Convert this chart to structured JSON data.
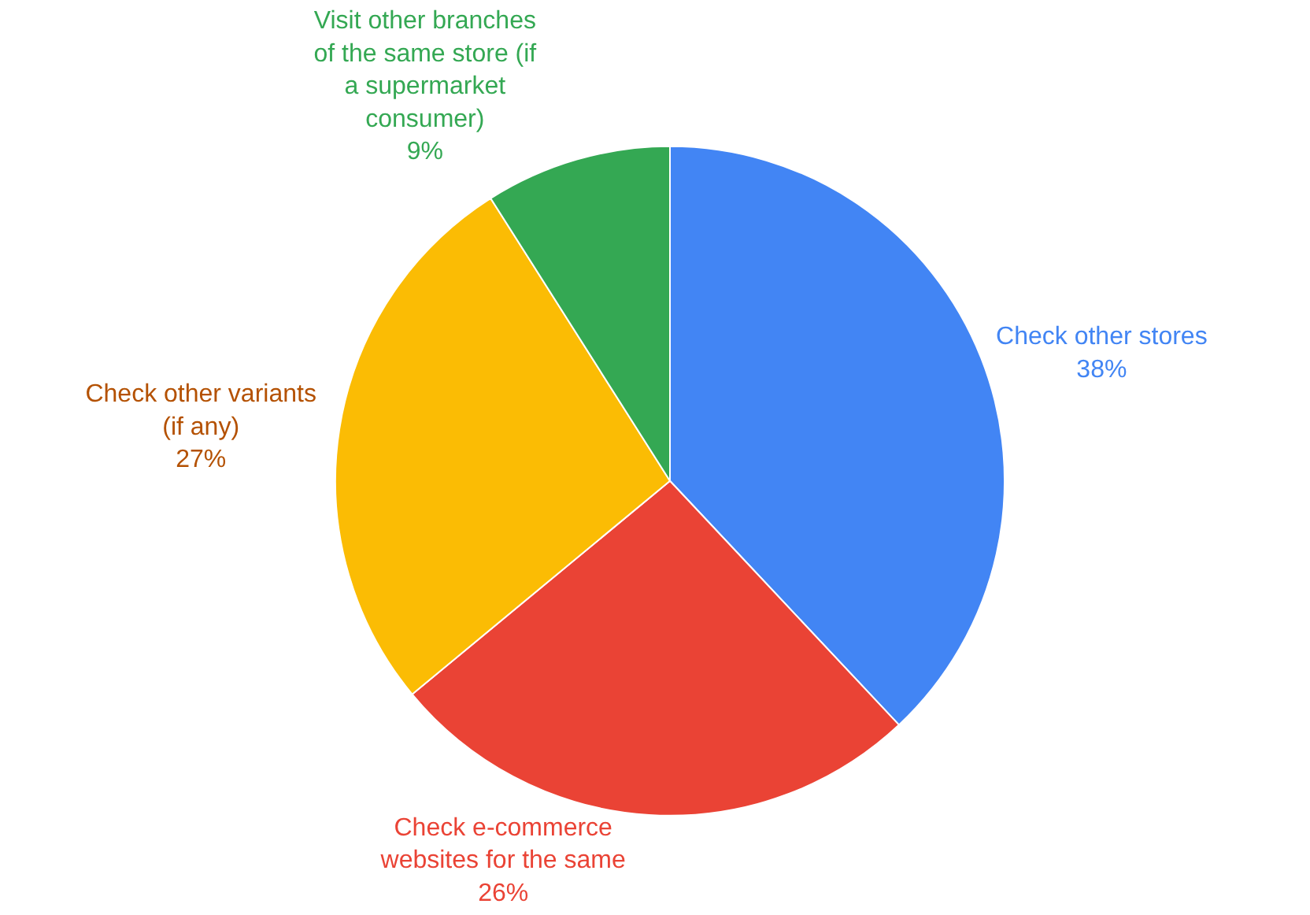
{
  "chart_data": {
    "type": "pie",
    "categories": [
      "Check other stores",
      "Check e-commerce websites for the same",
      "Check other variants (if any)",
      "Visit other branches of the same store (if a supermarket consumer)"
    ],
    "values": [
      38,
      26,
      27,
      9
    ],
    "value_labels": [
      "38%",
      "26%",
      "27%",
      "9%"
    ],
    "colors": [
      "#4285f4",
      "#ea4335",
      "#fbbc04",
      "#34a853"
    ],
    "legend": false
  }
}
